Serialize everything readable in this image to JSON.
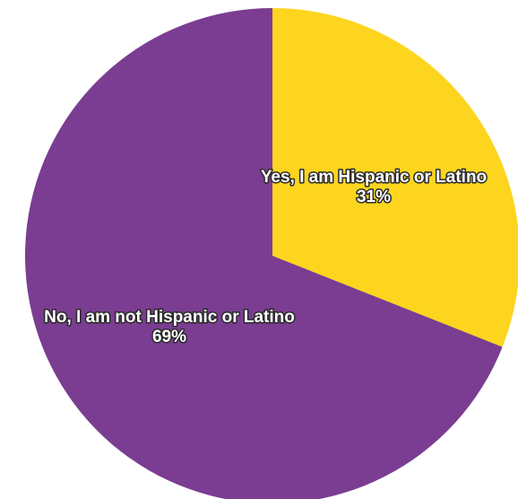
{
  "chart_data": {
    "type": "pie",
    "title": "",
    "slices": [
      {
        "label": "Yes, I am Hispanic or Latino",
        "value": 31,
        "value_label": "31%",
        "color": "#FDD51E"
      },
      {
        "label": "No, I am not Hispanic or Latino",
        "value": 69,
        "value_label": "69%",
        "color": "#7A3D91"
      }
    ],
    "start": "12 o'clock",
    "direction": "clockwise",
    "legend": "none",
    "labels": "on slices"
  }
}
